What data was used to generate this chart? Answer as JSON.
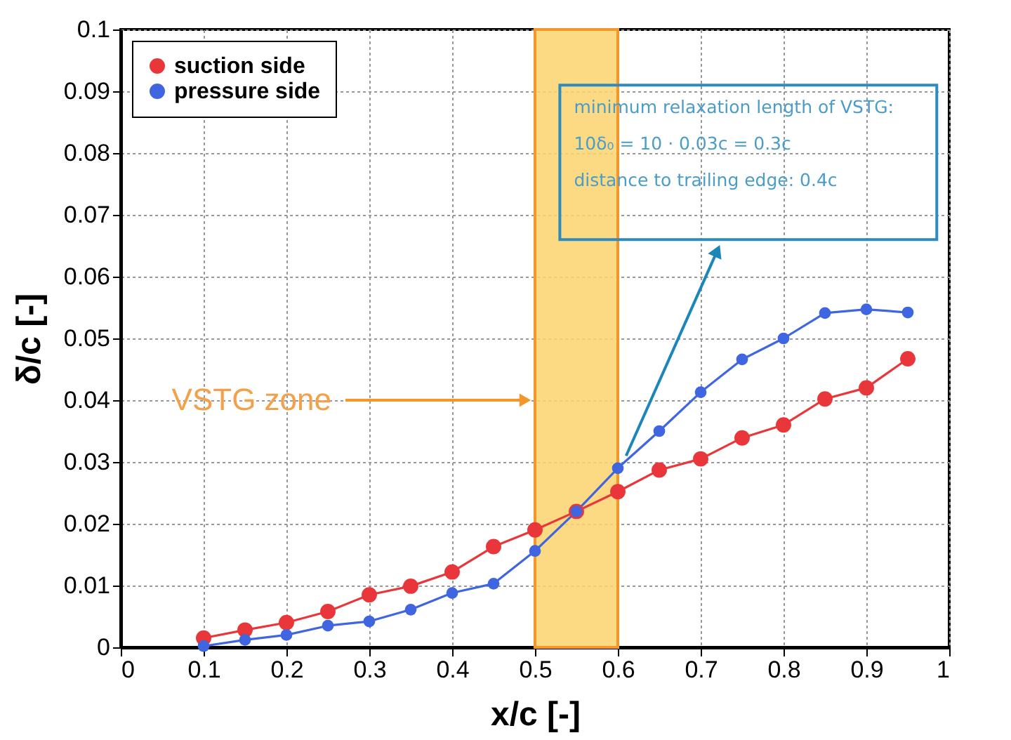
{
  "chart_data": {
    "type": "line",
    "xlabel": "x/c [-]",
    "ylabel": "δ/c [-]",
    "xlim": [
      0,
      1
    ],
    "ylim": [
      0,
      0.1
    ],
    "xticks": [
      0,
      0.1,
      0.2,
      0.3,
      0.4,
      0.5,
      0.6,
      0.7,
      0.8,
      0.9,
      1
    ],
    "yticks": [
      0,
      0.01,
      0.02,
      0.03,
      0.04,
      0.05,
      0.06,
      0.07,
      0.08,
      0.09,
      0.1
    ],
    "x": [
      0.1,
      0.15,
      0.2,
      0.25,
      0.3,
      0.35,
      0.4,
      0.45,
      0.5,
      0.55,
      0.6,
      0.65,
      0.7,
      0.75,
      0.8,
      0.85,
      0.9,
      0.95
    ],
    "series": [
      {
        "name": "suction side",
        "color": "#e8363a",
        "values": [
          0.0015,
          0.0028,
          0.004,
          0.0058,
          0.0085,
          0.0099,
          0.0122,
          0.0163,
          0.019,
          0.022,
          0.0252,
          0.0287,
          0.0305,
          0.0339,
          0.036,
          0.0402,
          0.042,
          0.0467
        ]
      },
      {
        "name": "pressure side",
        "color": "#3f65e0",
        "values": [
          0.0002,
          0.0012,
          0.002,
          0.0035,
          0.0042,
          0.0061,
          0.0088,
          0.0103,
          0.0156,
          0.022,
          0.029,
          0.035,
          0.0413,
          0.0466,
          0.05,
          0.0541,
          0.0547,
          0.0542
        ]
      }
    ],
    "bands": [
      {
        "axis": "x",
        "from": 0.5,
        "to": 0.6,
        "label": "VSTG zone",
        "color": "#fbd46d"
      }
    ],
    "annotations": [
      "minimum  relaxation length of VSTG:\n10δ₀ = 10 · 0.03c = 0.3c\ndistance to trailing edge: 0.4c"
    ],
    "grid": true,
    "legend": "top left",
    "marker": "circle",
    "line_style": "solid"
  }
}
